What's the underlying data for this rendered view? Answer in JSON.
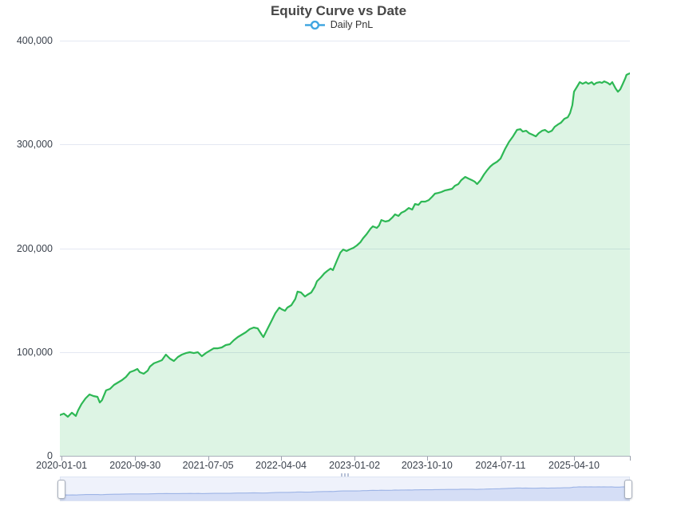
{
  "header": {
    "title": "Equity Curve vs Date",
    "legend_label": "Daily PnL"
  },
  "colors": {
    "line": "#2eb855",
    "fill": "#2eb855",
    "fill_opacity": 0.16,
    "legend_icon": "#41a6e1",
    "grid": "#e4e8f2",
    "axis": "#aab0bb",
    "label": "#3b424d",
    "slider_fill": "#d5def6",
    "slider_line": "#9db4e6"
  },
  "chart_data": {
    "type": "area",
    "title": "Equity Curve vs Date",
    "legend_position": "top",
    "grid": true,
    "series_name": "Daily PnL",
    "xlabel": "",
    "ylabel": "",
    "ylim": [
      0,
      400000
    ],
    "y_ticks": [
      {
        "value": 0,
        "label": "0"
      },
      {
        "value": 100000,
        "label": "100,000"
      },
      {
        "value": 200000,
        "label": "200,000"
      },
      {
        "value": 300000,
        "label": "300,000"
      },
      {
        "value": 400000,
        "label": "400,000"
      }
    ],
    "x_ticks": [
      {
        "label": "2020-01-01",
        "f": 0.003
      },
      {
        "label": "2020-09-30",
        "f": 0.132
      },
      {
        "label": "2021-07-05",
        "f": 0.26
      },
      {
        "label": "2022-04-04",
        "f": 0.388
      },
      {
        "label": "2023-01-02",
        "f": 0.517
      },
      {
        "label": "2023-10-10",
        "f": 0.644
      },
      {
        "label": "2024-07-11",
        "f": 0.773
      },
      {
        "label": "2025-04-10",
        "f": 0.902
      }
    ],
    "x_edge_tick_f": 1.0,
    "points": [
      [
        0.0,
        39200
      ],
      [
        0.007,
        40700
      ],
      [
        0.014,
        37600
      ],
      [
        0.021,
        41500
      ],
      [
        0.028,
        38400
      ],
      [
        0.032,
        43800
      ],
      [
        0.038,
        49900
      ],
      [
        0.045,
        55300
      ],
      [
        0.052,
        59100
      ],
      [
        0.059,
        57600
      ],
      [
        0.066,
        56800
      ],
      [
        0.07,
        51400
      ],
      [
        0.074,
        53700
      ],
      [
        0.081,
        63000
      ],
      [
        0.088,
        64500
      ],
      [
        0.095,
        68300
      ],
      [
        0.102,
        70600
      ],
      [
        0.109,
        72900
      ],
      [
        0.116,
        76000
      ],
      [
        0.123,
        80600
      ],
      [
        0.13,
        82100
      ],
      [
        0.136,
        83700
      ],
      [
        0.14,
        80600
      ],
      [
        0.147,
        79100
      ],
      [
        0.154,
        82100
      ],
      [
        0.158,
        86000
      ],
      [
        0.165,
        89100
      ],
      [
        0.172,
        90600
      ],
      [
        0.179,
        92100
      ],
      [
        0.186,
        97500
      ],
      [
        0.193,
        93700
      ],
      [
        0.2,
        91400
      ],
      [
        0.207,
        95200
      ],
      [
        0.214,
        97500
      ],
      [
        0.221,
        99000
      ],
      [
        0.228,
        99800
      ],
      [
        0.235,
        99000
      ],
      [
        0.242,
        99800
      ],
      [
        0.249,
        96000
      ],
      [
        0.256,
        99000
      ],
      [
        0.263,
        101300
      ],
      [
        0.27,
        103600
      ],
      [
        0.277,
        103600
      ],
      [
        0.284,
        104400
      ],
      [
        0.291,
        106700
      ],
      [
        0.298,
        107500
      ],
      [
        0.305,
        111300
      ],
      [
        0.312,
        114400
      ],
      [
        0.319,
        116700
      ],
      [
        0.326,
        119000
      ],
      [
        0.333,
        122100
      ],
      [
        0.34,
        123600
      ],
      [
        0.347,
        122800
      ],
      [
        0.354,
        116700
      ],
      [
        0.357,
        114400
      ],
      [
        0.364,
        122100
      ],
      [
        0.371,
        129700
      ],
      [
        0.378,
        137400
      ],
      [
        0.385,
        142800
      ],
      [
        0.389,
        141300
      ],
      [
        0.395,
        139700
      ],
      [
        0.399,
        142800
      ],
      [
        0.406,
        145100
      ],
      [
        0.413,
        151200
      ],
      [
        0.417,
        158200
      ],
      [
        0.423,
        157400
      ],
      [
        0.43,
        153500
      ],
      [
        0.434,
        155100
      ],
      [
        0.441,
        157400
      ],
      [
        0.447,
        162800
      ],
      [
        0.451,
        168100
      ],
      [
        0.458,
        172000
      ],
      [
        0.464,
        175800
      ],
      [
        0.469,
        178100
      ],
      [
        0.475,
        180400
      ],
      [
        0.479,
        178900
      ],
      [
        0.486,
        188100
      ],
      [
        0.492,
        195800
      ],
      [
        0.497,
        198800
      ],
      [
        0.503,
        197300
      ],
      [
        0.508,
        198800
      ],
      [
        0.515,
        200400
      ],
      [
        0.521,
        202700
      ],
      [
        0.527,
        205700
      ],
      [
        0.532,
        209600
      ],
      [
        0.538,
        213400
      ],
      [
        0.545,
        218800
      ],
      [
        0.549,
        221100
      ],
      [
        0.556,
        219600
      ],
      [
        0.56,
        221900
      ],
      [
        0.564,
        227200
      ],
      [
        0.571,
        225700
      ],
      [
        0.577,
        226500
      ],
      [
        0.583,
        229500
      ],
      [
        0.588,
        232600
      ],
      [
        0.594,
        231100
      ],
      [
        0.599,
        234200
      ],
      [
        0.605,
        235700
      ],
      [
        0.612,
        238800
      ],
      [
        0.618,
        237200
      ],
      [
        0.623,
        242600
      ],
      [
        0.629,
        241800
      ],
      [
        0.634,
        244900
      ],
      [
        0.641,
        244900
      ],
      [
        0.647,
        246400
      ],
      [
        0.653,
        249500
      ],
      [
        0.658,
        252600
      ],
      [
        0.664,
        253300
      ],
      [
        0.669,
        254100
      ],
      [
        0.675,
        255600
      ],
      [
        0.682,
        256400
      ],
      [
        0.688,
        257200
      ],
      [
        0.693,
        260200
      ],
      [
        0.699,
        261800
      ],
      [
        0.704,
        265600
      ],
      [
        0.711,
        268700
      ],
      [
        0.717,
        267100
      ],
      [
        0.723,
        265600
      ],
      [
        0.728,
        264000
      ],
      [
        0.732,
        261800
      ],
      [
        0.738,
        265600
      ],
      [
        0.744,
        271000
      ],
      [
        0.749,
        274800
      ],
      [
        0.755,
        278700
      ],
      [
        0.76,
        281000
      ],
      [
        0.767,
        283300
      ],
      [
        0.773,
        286300
      ],
      [
        0.781,
        295600
      ],
      [
        0.788,
        302500
      ],
      [
        0.795,
        307800
      ],
      [
        0.802,
        314000
      ],
      [
        0.808,
        314700
      ],
      [
        0.812,
        312400
      ],
      [
        0.818,
        313200
      ],
      [
        0.823,
        310900
      ],
      [
        0.829,
        309400
      ],
      [
        0.835,
        307800
      ],
      [
        0.84,
        310900
      ],
      [
        0.846,
        313200
      ],
      [
        0.851,
        314000
      ],
      [
        0.857,
        311700
      ],
      [
        0.863,
        313200
      ],
      [
        0.868,
        317000
      ],
      [
        0.874,
        319300
      ],
      [
        0.879,
        320900
      ],
      [
        0.885,
        324700
      ],
      [
        0.891,
        326200
      ],
      [
        0.895,
        330100
      ],
      [
        0.899,
        337800
      ],
      [
        0.902,
        350800
      ],
      [
        0.908,
        356200
      ],
      [
        0.912,
        360000
      ],
      [
        0.917,
        358500
      ],
      [
        0.923,
        360000
      ],
      [
        0.927,
        358500
      ],
      [
        0.933,
        360000
      ],
      [
        0.937,
        357700
      ],
      [
        0.941,
        359300
      ],
      [
        0.947,
        360000
      ],
      [
        0.951,
        359300
      ],
      [
        0.955,
        360800
      ],
      [
        0.961,
        359300
      ],
      [
        0.965,
        357700
      ],
      [
        0.969,
        360000
      ],
      [
        0.975,
        353900
      ],
      [
        0.979,
        350800
      ],
      [
        0.983,
        353100
      ],
      [
        0.987,
        357700
      ],
      [
        0.992,
        363900
      ],
      [
        0.994,
        367000
      ],
      [
        0.997,
        367800
      ],
      [
        1.0,
        368500
      ]
    ]
  }
}
